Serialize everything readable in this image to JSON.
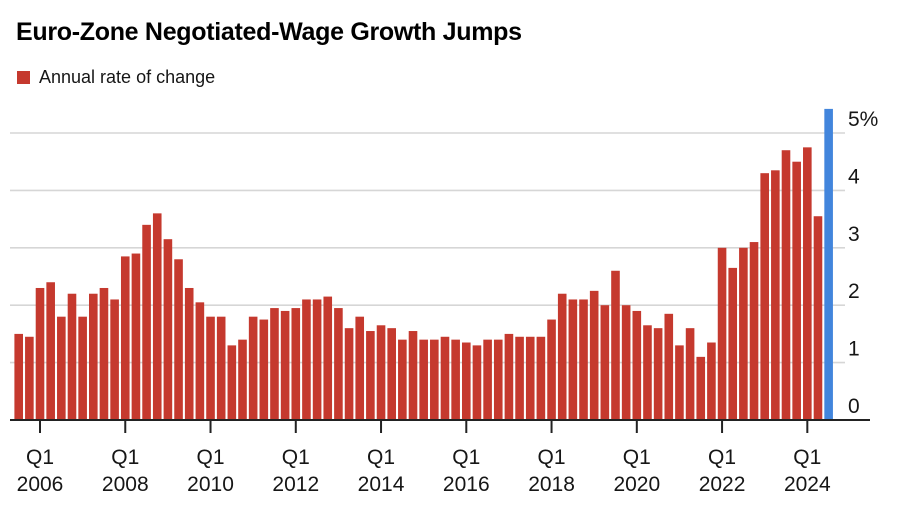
{
  "title": "Euro-Zone Negotiated-Wage Growth Jumps",
  "legend": {
    "label": "Annual rate of change"
  },
  "colors": {
    "bar": "#c5392e",
    "highlight": "#4285dc",
    "gridline": "#d6d6d6",
    "axis": "#222222",
    "text": "#161616"
  },
  "chart_data": {
    "type": "bar",
    "title": "Euro-Zone Negotiated-Wage Growth Jumps",
    "series_name": "Annual rate of change",
    "unit": "%",
    "ylim": [
      0,
      5.5
    ],
    "grid": true,
    "legend_position": "top-left",
    "xlabel": "",
    "ylabel": "",
    "categories": [
      "2005 Q3",
      "2005 Q4",
      "2006 Q1",
      "2006 Q2",
      "2006 Q3",
      "2006 Q4",
      "2007 Q1",
      "2007 Q2",
      "2007 Q3",
      "2007 Q4",
      "2008 Q1",
      "2008 Q2",
      "2008 Q3",
      "2008 Q4",
      "2009 Q1",
      "2009 Q2",
      "2009 Q3",
      "2009 Q4",
      "2010 Q1",
      "2010 Q2",
      "2010 Q3",
      "2010 Q4",
      "2011 Q1",
      "2011 Q2",
      "2011 Q3",
      "2011 Q4",
      "2012 Q1",
      "2012 Q2",
      "2012 Q3",
      "2012 Q4",
      "2013 Q1",
      "2013 Q2",
      "2013 Q3",
      "2013 Q4",
      "2014 Q1",
      "2014 Q2",
      "2014 Q3",
      "2014 Q4",
      "2015 Q1",
      "2015 Q2",
      "2015 Q3",
      "2015 Q4",
      "2016 Q1",
      "2016 Q2",
      "2016 Q3",
      "2016 Q4",
      "2017 Q1",
      "2017 Q2",
      "2017 Q3",
      "2017 Q4",
      "2018 Q1",
      "2018 Q2",
      "2018 Q3",
      "2018 Q4",
      "2019 Q1",
      "2019 Q2",
      "2019 Q3",
      "2019 Q4",
      "2020 Q1",
      "2020 Q2",
      "2020 Q3",
      "2020 Q4",
      "2021 Q1",
      "2021 Q2",
      "2021 Q3",
      "2021 Q4",
      "2022 Q1",
      "2022 Q2",
      "2022 Q3",
      "2022 Q4",
      "2023 Q1",
      "2023 Q2",
      "2023 Q3",
      "2023 Q4",
      "2024 Q1",
      "2024 Q2",
      "2024 Q3"
    ],
    "values": [
      1.5,
      1.45,
      2.3,
      2.4,
      1.8,
      2.2,
      1.8,
      2.2,
      2.3,
      2.1,
      2.85,
      2.9,
      3.4,
      3.6,
      3.15,
      2.8,
      2.3,
      2.05,
      1.8,
      1.8,
      1.3,
      1.4,
      1.8,
      1.75,
      1.95,
      1.9,
      1.95,
      2.1,
      2.1,
      2.15,
      1.95,
      1.6,
      1.8,
      1.55,
      1.65,
      1.6,
      1.4,
      1.55,
      1.4,
      1.4,
      1.45,
      1.4,
      1.35,
      1.3,
      1.4,
      1.4,
      1.5,
      1.45,
      1.45,
      1.45,
      1.75,
      2.2,
      2.1,
      2.1,
      2.25,
      2.0,
      2.6,
      2.0,
      1.9,
      1.65,
      1.6,
      1.85,
      1.3,
      1.6,
      1.1,
      1.35,
      3.0,
      2.65,
      3.0,
      3.1,
      4.3,
      4.35,
      4.7,
      4.5,
      4.75,
      3.55,
      5.42
    ],
    "highlight_index": 76,
    "y_ticks": [
      {
        "value": 5,
        "label": "5%"
      },
      {
        "value": 4,
        "label": "4"
      },
      {
        "value": 3,
        "label": "3"
      },
      {
        "value": 2,
        "label": "2"
      },
      {
        "value": 1,
        "label": "1"
      },
      {
        "value": 0,
        "label": "0"
      }
    ],
    "x_ticks": [
      {
        "index": 2,
        "line1": "Q1",
        "line2": "2006"
      },
      {
        "index": 10,
        "line1": "Q1",
        "line2": "2008"
      },
      {
        "index": 18,
        "line1": "Q1",
        "line2": "2010"
      },
      {
        "index": 26,
        "line1": "Q1",
        "line2": "2012"
      },
      {
        "index": 34,
        "line1": "Q1",
        "line2": "2014"
      },
      {
        "index": 42,
        "line1": "Q1",
        "line2": "2016"
      },
      {
        "index": 50,
        "line1": "Q1",
        "line2": "2018"
      },
      {
        "index": 58,
        "line1": "Q1",
        "line2": "2020"
      },
      {
        "index": 66,
        "line1": "Q1",
        "line2": "2022"
      },
      {
        "index": 74,
        "line1": "Q1",
        "line2": "2024"
      }
    ]
  }
}
